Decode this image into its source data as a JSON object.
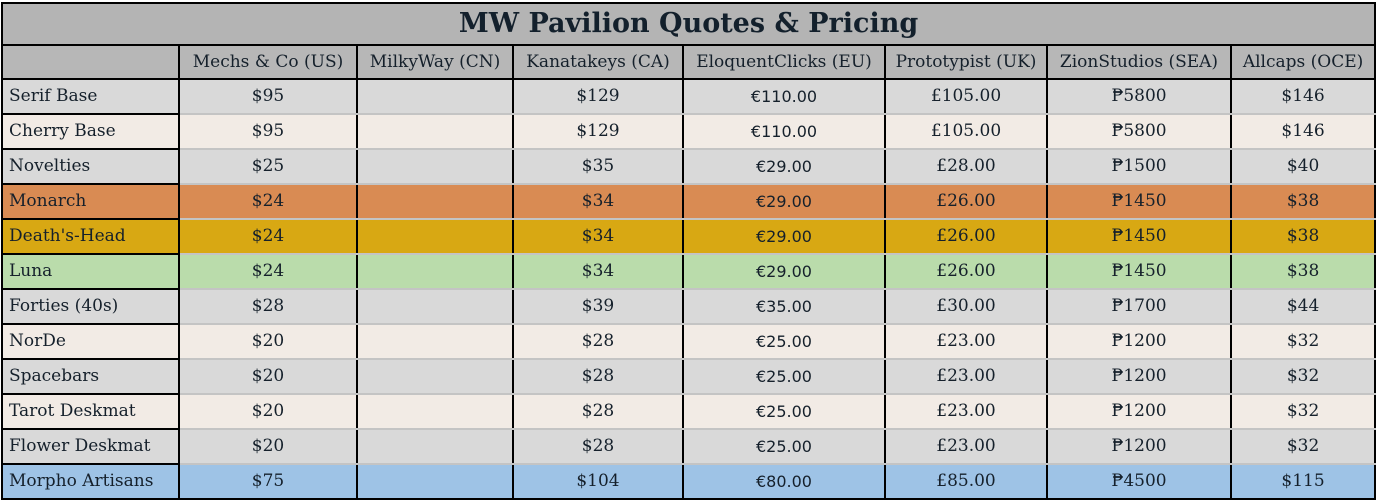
{
  "title": "MW Pavilion Quotes & Pricing",
  "columns": [
    "",
    "Mechs & Co (US)",
    "MilkyWay (CN)",
    "Kanatakeys (CA)",
    "EloquentClicks (EU)",
    "Prototypist (UK)",
    "ZionStudios (SEA)",
    "Allcaps (OCE)"
  ],
  "row_colors": {
    "gray": "#d9d9d9",
    "cream": "#f2ebe5",
    "orange": "#d98b53",
    "gold": "#d8a813",
    "green": "#badcab",
    "blue": "#9ec3e6"
  },
  "rows": [
    {
      "label": "Serif Base",
      "color": "gray",
      "us": "$95",
      "cn": "",
      "ca": "$129",
      "eu": "€110.00",
      "uk": "£105.00",
      "sea": "₱5800",
      "oce": "$146"
    },
    {
      "label": "Cherry Base",
      "color": "cream",
      "us": "$95",
      "cn": "",
      "ca": "$129",
      "eu": "€110.00",
      "uk": "£105.00",
      "sea": "₱5800",
      "oce": "$146"
    },
    {
      "label": "Novelties",
      "color": "gray",
      "us": "$25",
      "cn": "",
      "ca": "$35",
      "eu": "€29.00",
      "uk": "£28.00",
      "sea": "₱1500",
      "oce": "$40"
    },
    {
      "label": "Monarch",
      "color": "orange",
      "us": "$24",
      "cn": "",
      "ca": "$34",
      "eu": "€29.00",
      "uk": "£26.00",
      "sea": "₱1450",
      "oce": "$38"
    },
    {
      "label": "Death's-Head",
      "color": "gold",
      "us": "$24",
      "cn": "",
      "ca": "$34",
      "eu": "€29.00",
      "uk": "£26.00",
      "sea": "₱1450",
      "oce": "$38"
    },
    {
      "label": "Luna",
      "color": "green",
      "us": "$24",
      "cn": "",
      "ca": "$34",
      "eu": "€29.00",
      "uk": "£26.00",
      "sea": "₱1450",
      "oce": "$38"
    },
    {
      "label": "Forties (40s)",
      "color": "gray",
      "us": "$28",
      "cn": "",
      "ca": "$39",
      "eu": "€35.00",
      "uk": "£30.00",
      "sea": "₱1700",
      "oce": "$44"
    },
    {
      "label": "NorDe",
      "color": "cream",
      "us": "$20",
      "cn": "",
      "ca": "$28",
      "eu": "€25.00",
      "uk": "£23.00",
      "sea": "₱1200",
      "oce": "$32"
    },
    {
      "label": "Spacebars",
      "color": "gray",
      "us": "$20",
      "cn": "",
      "ca": "$28",
      "eu": "€25.00",
      "uk": "£23.00",
      "sea": "₱1200",
      "oce": "$32"
    },
    {
      "label": "Tarot Deskmat",
      "color": "cream",
      "us": "$20",
      "cn": "",
      "ca": "$28",
      "eu": "€25.00",
      "uk": "£23.00",
      "sea": "₱1200",
      "oce": "$32"
    },
    {
      "label": "Flower Deskmat",
      "color": "gray",
      "us": "$20",
      "cn": "",
      "ca": "$28",
      "eu": "€25.00",
      "uk": "£23.00",
      "sea": "₱1200",
      "oce": "$32"
    },
    {
      "label": "Morpho Artisans",
      "color": "blue",
      "us": "$75",
      "cn": "",
      "ca": "$104",
      "eu": "€80.00",
      "uk": "£85.00",
      "sea": "₱4500",
      "oce": "$115"
    }
  ]
}
